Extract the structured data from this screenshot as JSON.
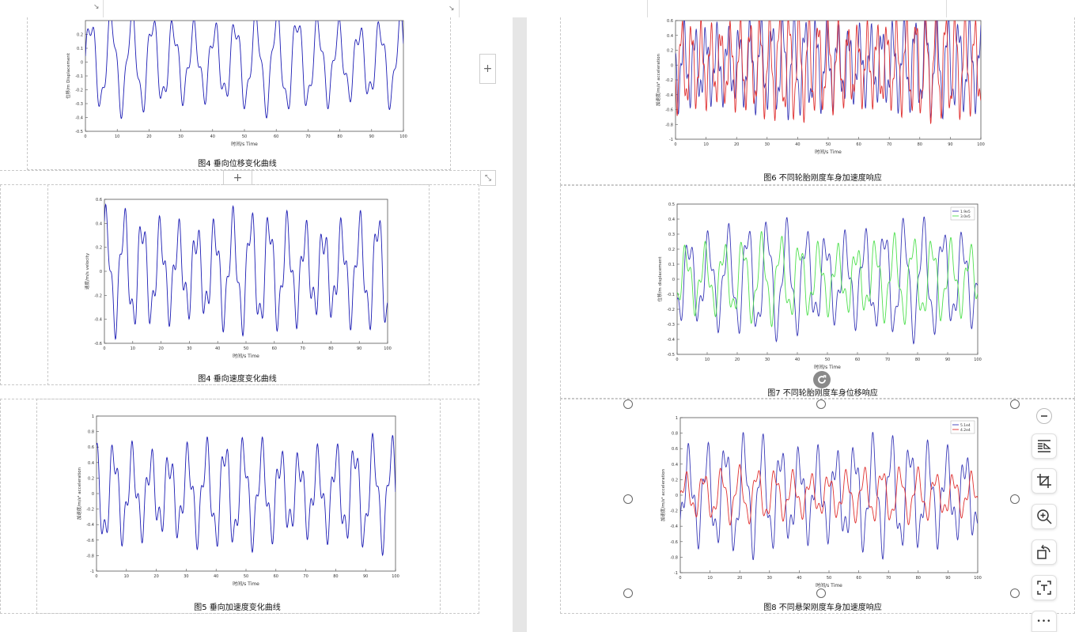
{
  "left_page": {
    "figures": [
      {
        "caption": "图4 垂向位移变化曲线",
        "chart_data": {
          "type": "line",
          "ylabel": "位移/m Displacement",
          "xlabel": "时间/s Time",
          "xlim": [
            0,
            100
          ],
          "ylim": [
            -0.5,
            0.3
          ],
          "xticks": [
            "0",
            "10",
            "20",
            "30",
            "40",
            "50",
            "60",
            "70",
            "80",
            "90",
            "100"
          ],
          "yticks": [
            "-0.5",
            "-0.4",
            "-0.3",
            "-0.2",
            "-0.1",
            "0",
            "0.1",
            "0.2"
          ],
          "series": [
            {
              "color": "#1c1cb4",
              "amp_main": 0.32,
              "amp_sec": 0.09,
              "period": 6.5
            }
          ]
        }
      },
      {
        "caption": "图4 垂向速度变化曲线",
        "chart_data": {
          "type": "line",
          "ylabel": "速度/m/s velocity",
          "xlabel": "时间/s Time",
          "xlim": [
            0,
            100
          ],
          "ylim": [
            -0.6,
            0.6
          ],
          "xticks": [
            "0",
            "10",
            "20",
            "30",
            "40",
            "50",
            "60",
            "70",
            "80",
            "90",
            "100"
          ],
          "yticks": [
            "-0.6",
            "-0.4",
            "-0.2",
            "0",
            "0.2",
            "0.4",
            "0.6"
          ],
          "series": [
            {
              "color": "#1c1cb4",
              "amp_main": 0.42,
              "amp_sec": 0.15,
              "period": 6.4
            }
          ]
        }
      },
      {
        "caption": "图5 垂向加速度变化曲线",
        "chart_data": {
          "type": "line",
          "ylabel": "加速度/m/s² acceleration",
          "xlabel": "时间/s Time",
          "xlim": [
            0,
            100
          ],
          "ylim": [
            -1,
            1
          ],
          "xticks": [
            "0",
            "10",
            "20",
            "30",
            "40",
            "50",
            "60",
            "70",
            "80",
            "90",
            "100"
          ],
          "yticks": [
            "-1",
            "-0.8",
            "-0.6",
            "-0.4",
            "-0.2",
            "0",
            "0.2",
            "0.4",
            "0.6",
            "0.8",
            "1"
          ],
          "series": [
            {
              "color": "#1c1cb4",
              "amp_main": 0.58,
              "amp_sec": 0.22,
              "period": 6.2
            }
          ]
        }
      }
    ]
  },
  "right_page": {
    "figures": [
      {
        "caption": "图6 不同轮胎刚度车身加速度响应",
        "chart_data": {
          "type": "line",
          "ylabel": "加速度/m/s² acceleration",
          "xlabel": "时间/s Time",
          "xlim": [
            0,
            100
          ],
          "ylim": [
            -1,
            0.6
          ],
          "xticks": [
            "0",
            "10",
            "20",
            "30",
            "40",
            "50",
            "60",
            "70",
            "80",
            "90",
            "100"
          ],
          "yticks": [
            "-1",
            "-0.8",
            "-0.6",
            "-0.4",
            "-0.2",
            "0",
            "0.2",
            "0.4",
            "0.6"
          ],
          "legend": [],
          "series": [
            {
              "color": "#3a3ab8",
              "amp_main": 0.55,
              "amp_sec": 0.2,
              "period": 3.6
            },
            {
              "color": "#e03030",
              "amp_main": 0.62,
              "amp_sec": 0.18,
              "period": 3.2
            }
          ]
        }
      },
      {
        "caption": "图7 不同轮胎刚度车身位移响应",
        "chart_data": {
          "type": "line",
          "ylabel": "位移/m displacement",
          "xlabel": "时间/s Time",
          "xlim": [
            0,
            100
          ],
          "ylim": [
            -0.5,
            0.5
          ],
          "xticks": [
            "0",
            "10",
            "20",
            "30",
            "40",
            "50",
            "60",
            "70",
            "80",
            "90",
            "100"
          ],
          "yticks": [
            "-0.5",
            "-0.4",
            "-0.3",
            "-0.2",
            "-0.1",
            "0",
            "0.1",
            "0.2",
            "0.3",
            "0.4",
            "0.5"
          ],
          "legend": [
            "1.9e5",
            "3.0e5"
          ],
          "series": [
            {
              "name": "1.9e5",
              "color": "#3a3ab8",
              "amp_main": 0.33,
              "amp_sec": 0.1,
              "period": 6.5
            },
            {
              "name": "3.0e5",
              "color": "#4fe04f",
              "amp_main": 0.24,
              "amp_sec": 0.08,
              "period": 6.3
            }
          ]
        }
      },
      {
        "caption": "图8 不同悬架刚度车身加速度响应",
        "chart_data": {
          "type": "line",
          "ylabel": "加速度/m/s² acceleration",
          "xlabel": "时间/s Time",
          "xlim": [
            0,
            100
          ],
          "ylim": [
            -1,
            1
          ],
          "xticks": [
            "0",
            "10",
            "20",
            "30",
            "40",
            "50",
            "60",
            "70",
            "80",
            "90",
            "100"
          ],
          "yticks": [
            "-1",
            "-0.8",
            "-0.6",
            "-0.4",
            "-0.2",
            "0",
            "0.2",
            "0.4",
            "0.6",
            "0.8",
            "1"
          ],
          "legend": [
            "5.1e4",
            "4.2e4"
          ],
          "series": [
            {
              "name": "5.1e4",
              "color": "#3a3ab8",
              "amp_main": 0.62,
              "amp_sec": 0.22,
              "period": 6.2
            },
            {
              "name": "4.2e4",
              "color": "#e03030",
              "amp_main": 0.3,
              "amp_sec": 0.1,
              "period": 6.0
            }
          ]
        }
      }
    ]
  },
  "toolbar": {
    "icons": [
      "minus-icon",
      "text-wrap-icon",
      "crop-icon",
      "zoom-in-icon",
      "rotate-icon",
      "ocr-icon",
      "more-icon"
    ],
    "more_label": "•••",
    "add_label": "+"
  }
}
